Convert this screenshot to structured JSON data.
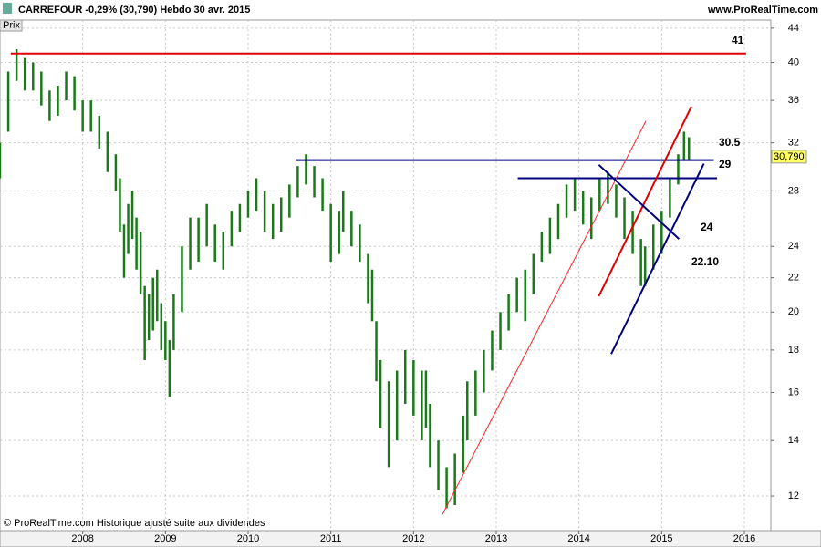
{
  "chart_data": {
    "type": "range-bar",
    "title": "CARREFOUR   -0,29% (30,790)   Hebdo   30 avr. 2015",
    "source": "www.ProRealTime.com",
    "axis_label": "Prix",
    "footnote": "© ProRealTime.com Historique ajusté suite aux dividendes",
    "price_tag": {
      "value": 30.79,
      "label": "30,790"
    },
    "log_scale": true,
    "grid": true,
    "xlim": [
      2007.0,
      2016.32
    ],
    "xticks": [
      2008,
      2009,
      2010,
      2011,
      2012,
      2013,
      2014,
      2015,
      2016
    ],
    "ylim": [
      10.9,
      45
    ],
    "yticks": [
      12,
      14,
      16,
      18,
      20,
      22,
      24,
      28,
      32,
      36,
      40,
      44
    ],
    "series": [
      {
        "color": "#1a7a1a",
        "x": [
          2007.0,
          2007.1,
          2007.2,
          2007.3,
          2007.4,
          2007.5,
          2007.6,
          2007.7,
          2007.8,
          2007.9,
          2008.0,
          2008.1,
          2008.2,
          2008.3,
          2008.4,
          2008.45,
          2008.5,
          2008.55,
          2008.6,
          2008.65,
          2008.7,
          2008.75,
          2008.8,
          2008.85,
          2008.9,
          2008.95,
          2009.0,
          2009.05,
          2009.1,
          2009.2,
          2009.3,
          2009.4,
          2009.5,
          2009.6,
          2009.7,
          2009.8,
          2009.9,
          2010.0,
          2010.1,
          2010.2,
          2010.3,
          2010.4,
          2010.5,
          2010.6,
          2010.7,
          2010.8,
          2010.9,
          2011.0,
          2011.1,
          2011.15,
          2011.25,
          2011.35,
          2011.45,
          2011.5,
          2011.55,
          2011.6,
          2011.7,
          2011.8,
          2011.9,
          2012.0,
          2012.1,
          2012.15,
          2012.2,
          2012.3,
          2012.4,
          2012.5,
          2012.6,
          2012.65,
          2012.75,
          2012.85,
          2012.95,
          2013.05,
          2013.15,
          2013.25,
          2013.35,
          2013.45,
          2013.55,
          2013.65,
          2013.75,
          2013.85,
          2013.95,
          2014.05,
          2014.15,
          2014.25,
          2014.35,
          2014.45,
          2014.55,
          2014.65,
          2014.75,
          2014.8,
          2014.9,
          2015.0,
          2015.1,
          2015.2,
          2015.27,
          2015.33
        ],
        "high": [
          32,
          39,
          41.5,
          40.5,
          40,
          39,
          37,
          37.5,
          39,
          38.5,
          36,
          36,
          34.5,
          33,
          31,
          29,
          25.5,
          27,
          28,
          26,
          25,
          21.5,
          21,
          22,
          22.5,
          20.5,
          19.5,
          18.5,
          21,
          24,
          26,
          26,
          27,
          25.5,
          25,
          26.5,
          27,
          28,
          29,
          28,
          27,
          27.5,
          28.5,
          30,
          31,
          30,
          29,
          27,
          26.5,
          28,
          26.5,
          25.5,
          23.5,
          22.5,
          19.5,
          17.5,
          16.5,
          17,
          18,
          17.5,
          17,
          17,
          15.5,
          14,
          13,
          13.5,
          15,
          16.5,
          17,
          18,
          19,
          20,
          21,
          22,
          22.5,
          23.5,
          25,
          26,
          27,
          28.5,
          29,
          28,
          27.5,
          29,
          29.5,
          28.5,
          27.5,
          26.5,
          24.5,
          24,
          25.5,
          26.5,
          29,
          31,
          33,
          32.5
        ],
        "low": [
          29,
          33,
          38,
          37,
          37,
          35.5,
          34,
          34.5,
          36,
          35,
          33,
          33,
          31.5,
          29.5,
          28,
          25,
          22,
          23.5,
          24.5,
          22.5,
          21,
          17.5,
          18.5,
          19,
          19.5,
          18,
          17.5,
          15.8,
          18,
          20,
          22.5,
          23,
          24,
          23,
          22.5,
          24,
          25,
          26,
          26.5,
          25,
          24.5,
          25,
          26,
          27.5,
          28.5,
          27.5,
          26.5,
          23,
          23.5,
          25,
          24,
          23,
          20.5,
          19.5,
          16.5,
          14.5,
          13,
          14,
          15.5,
          15,
          14,
          14.5,
          13,
          12.2,
          11.6,
          11.7,
          12.8,
          14,
          15,
          16,
          17,
          18,
          19,
          20,
          19.5,
          21,
          23,
          23.5,
          24.5,
          26,
          26.5,
          25.5,
          24.5,
          26.5,
          27,
          26,
          24.5,
          23.5,
          21.5,
          21.5,
          22.5,
          23.5,
          26,
          28.5,
          30.5,
          30.5
        ]
      }
    ],
    "lines": [
      {
        "color": "#e00000",
        "width": 2,
        "x": [
          2007.13,
          2016.02
        ],
        "y": [
          41,
          41
        ]
      },
      {
        "color": "#000080",
        "width": 2,
        "x": [
          2010.58,
          2015.63
        ],
        "y": [
          30.5,
          30.5
        ]
      },
      {
        "color": "#000080",
        "width": 2,
        "x": [
          2013.26,
          2015.67
        ],
        "y": [
          29,
          29
        ]
      },
      {
        "color": "#ff2020",
        "width": 1,
        "x": [
          2012.35,
          2014.81
        ],
        "y": [
          11.4,
          34
        ]
      },
      {
        "color": "#e00000",
        "width": 2,
        "x": [
          2014.24,
          2015.36
        ],
        "y": [
          20.9,
          35.4
        ]
      },
      {
        "color": "#000080",
        "width": 2,
        "x": [
          2014.24,
          2015.21
        ],
        "y": [
          30.1,
          24.5
        ]
      },
      {
        "color": "#000080",
        "width": 2,
        "x": [
          2014.39,
          2015.51
        ],
        "y": [
          17.8,
          30.2
        ]
      }
    ],
    "annotations": [
      "41",
      "30.5",
      "29",
      "24",
      "22.10"
    ]
  }
}
